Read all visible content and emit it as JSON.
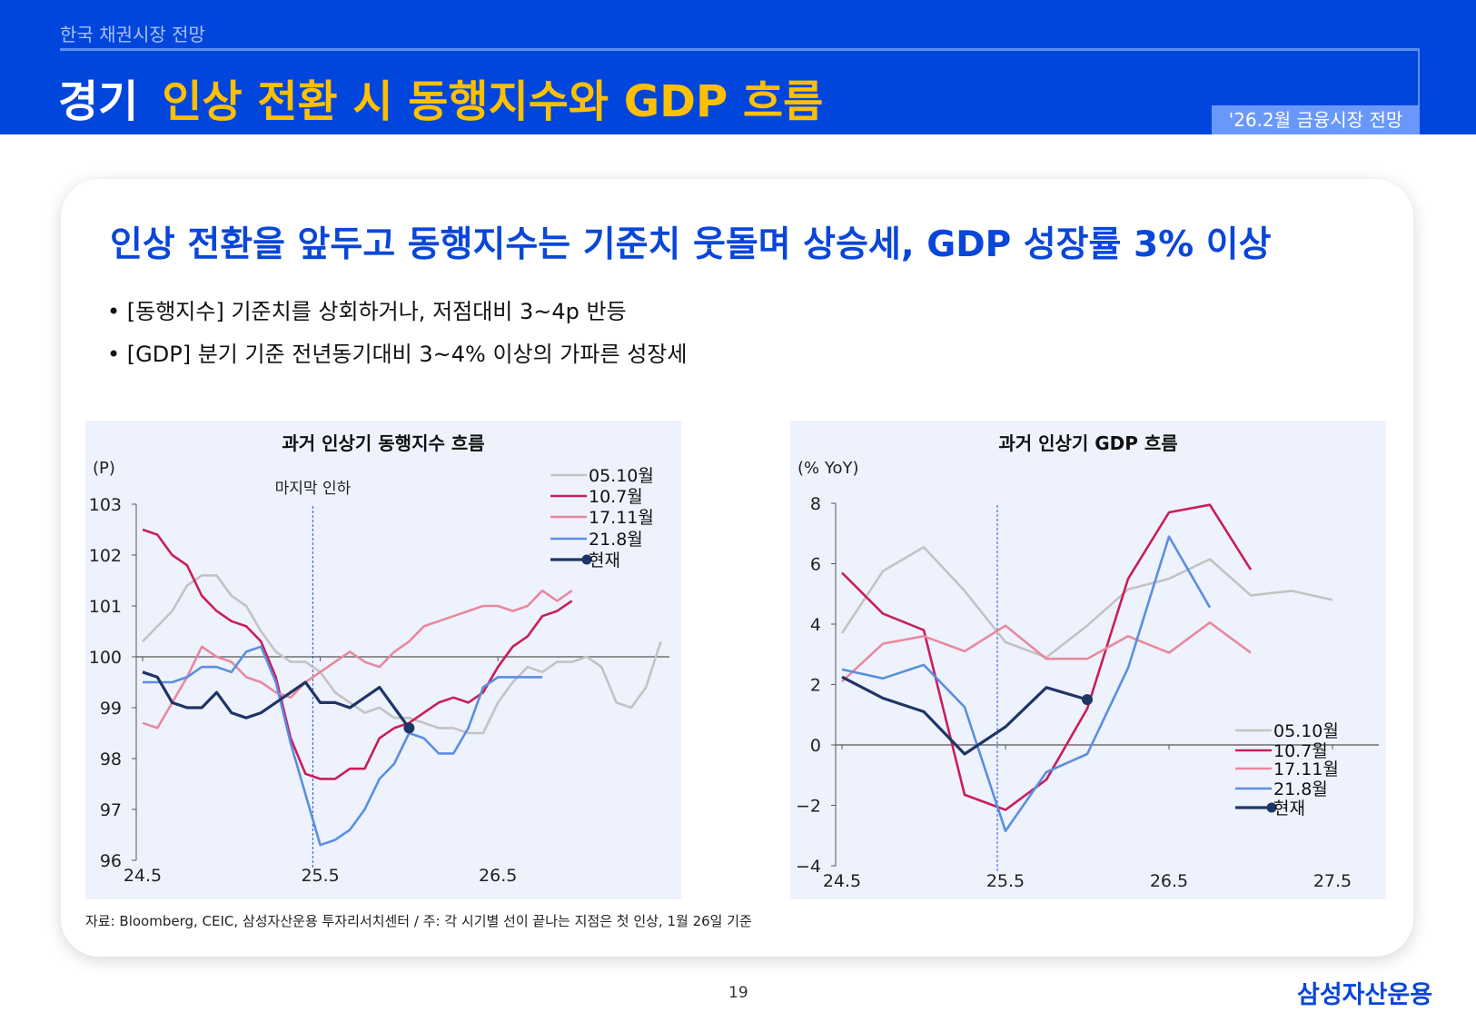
{
  "header": {
    "section": "한국 채권시장 전망",
    "category": "경기",
    "title": "인상 전환 시 동행지수와 GDP 흐름",
    "badge": "'26.2월 금융시장 전망"
  },
  "headline": "인상 전환을 앞두고 동행지수는 기준치 웃돌며 상승세, GDP 성장률 3% 이상",
  "bullets": [
    "• [동행지수] 기준치를 상회하거나, 저점대비 3~4p 반등",
    "• [GDP] 분기 기준 전년동기대비 3~4% 이상의 가파른 성장세"
  ],
  "source": "자료: Bloomberg, CEIC, 삼성자산운용 투자리서치센터 / 주: 각 시기별 선이 끝나는 지점은 첫 인상, 1월 26일 기준",
  "page_number": "19",
  "logo": "삼성자산운용",
  "colors": {
    "header": "#0046dd",
    "title_accent": "#ffc000",
    "panel": "#eef2fd"
  },
  "chart_data": [
    {
      "type": "line",
      "title": "과거 인상기 동행지수 흐름",
      "ylabel": "(P)",
      "frequency": "monthly",
      "x_start": "24.5",
      "x_ticks": [
        "24.5",
        "25.5",
        "26.5"
      ],
      "ylim": [
        96,
        103
      ],
      "y_ticks": [
        "96",
        "97",
        "98",
        "99",
        "100",
        "101",
        "102",
        "103"
      ],
      "reference_line": 100,
      "annotation": {
        "text": "마지막 인하",
        "x": "25.5"
      },
      "legend": "top-right",
      "series": [
        {
          "name": "05.10월",
          "color": "#c3c3c3",
          "values": [
            100.3,
            100.6,
            100.9,
            101.4,
            101.6,
            101.6,
            101.2,
            101.0,
            100.5,
            100.1,
            99.9,
            99.9,
            99.7,
            99.3,
            99.1,
            98.9,
            99.0,
            98.8,
            98.8,
            98.7,
            98.6,
            98.6,
            98.5,
            98.5,
            99.1,
            99.5,
            99.8,
            99.7,
            99.9,
            99.9,
            100.0,
            99.8,
            99.1,
            99.0,
            99.4,
            100.3
          ]
        },
        {
          "name": "10.7월",
          "color": "#c81e5a",
          "values": [
            102.5,
            102.4,
            102.0,
            101.8,
            101.2,
            100.9,
            100.7,
            100.6,
            100.3,
            99.6,
            98.4,
            97.7,
            97.6,
            97.6,
            97.8,
            97.8,
            98.4,
            98.6,
            98.7,
            98.9,
            99.1,
            99.2,
            99.1,
            99.3,
            99.8,
            100.2,
            100.4,
            100.8,
            100.9,
            101.1
          ]
        },
        {
          "name": "17.11월",
          "color": "#e8899e",
          "values": [
            98.7,
            98.6,
            99.1,
            99.6,
            100.2,
            100.0,
            99.9,
            99.6,
            99.5,
            99.3,
            99.2,
            99.5,
            99.7,
            99.9,
            100.1,
            99.9,
            99.8,
            100.1,
            100.3,
            100.6,
            100.7,
            100.8,
            100.9,
            101.0,
            101.0,
            100.9,
            101.0,
            101.3,
            101.1,
            101.3
          ]
        },
        {
          "name": "21.8월",
          "color": "#5b8ee0",
          "values": [
            99.5,
            99.5,
            99.5,
            99.6,
            99.8,
            99.8,
            99.7,
            100.1,
            100.2,
            99.5,
            98.3,
            97.3,
            96.3,
            96.4,
            96.6,
            97.0,
            97.6,
            97.9,
            98.5,
            98.4,
            98.1,
            98.1,
            98.6,
            99.4,
            99.6,
            99.6,
            99.6,
            99.6
          ]
        },
        {
          "name": "현재",
          "color": "#1f3566",
          "marker_at_end": true,
          "values": [
            99.7,
            99.6,
            99.1,
            99.0,
            99.0,
            99.3,
            98.9,
            98.8,
            98.9,
            99.1,
            99.3,
            99.5,
            99.1,
            99.1,
            99.0,
            99.2,
            99.4,
            99.0,
            98.6
          ]
        }
      ]
    },
    {
      "type": "line",
      "title": "과거 인상기 GDP 흐름",
      "ylabel": "(% YoY)",
      "frequency": "quarterly",
      "x_start": "24.5",
      "x_ticks": [
        "24.5",
        "25.5",
        "26.5",
        "27.5"
      ],
      "ylim": [
        -4,
        8
      ],
      "y_ticks": [
        "−4",
        "−2",
        "0",
        "2",
        "4",
        "6",
        "8"
      ],
      "reference_line": 0,
      "annotation": {
        "text": "",
        "x": "25.5"
      },
      "legend": "bottom-right",
      "series": [
        {
          "name": "05.10월",
          "color": "#c3c3c3",
          "values": [
            3.7,
            5.75,
            6.55,
            5.1,
            3.4,
            2.9,
            3.95,
            5.15,
            5.5,
            6.15,
            4.95,
            5.1,
            4.8
          ]
        },
        {
          "name": "10.7월",
          "color": "#c81e5a",
          "values": [
            5.7,
            4.35,
            3.8,
            -1.65,
            -2.15,
            -1.15,
            1.2,
            5.5,
            7.7,
            7.95,
            5.8
          ]
        },
        {
          "name": "17.11월",
          "color": "#e8899e",
          "values": [
            2.1,
            3.35,
            3.6,
            3.1,
            3.95,
            2.85,
            2.85,
            3.6,
            3.05,
            4.05,
            3.05
          ]
        },
        {
          "name": "21.8월",
          "color": "#5b8ee0",
          "values": [
            2.5,
            2.2,
            2.65,
            1.25,
            -2.85,
            -0.9,
            -0.3,
            2.55,
            6.9,
            4.55
          ]
        },
        {
          "name": "현재",
          "color": "#1f3566",
          "marker_at_end": true,
          "values": [
            2.25,
            1.55,
            1.1,
            -0.3,
            0.6,
            1.9,
            1.5
          ]
        }
      ]
    }
  ]
}
